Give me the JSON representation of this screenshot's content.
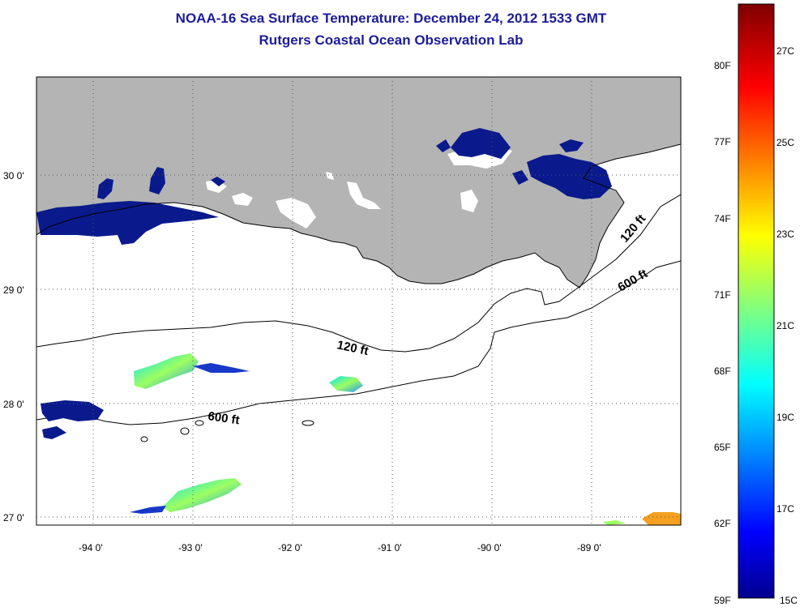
{
  "title": {
    "line1": "NOAA-16 Sea Surface Temperature:  December 24, 2012 1533 GMT",
    "line2": "Rutgers Coastal Ocean Observation Lab"
  },
  "map": {
    "lat_labels": [
      "30 0'",
      "29 0'",
      "28 0'",
      "27 0'"
    ],
    "lon_labels": [
      "-94 0'",
      "-93 0'",
      "-92 0'",
      "-91 0'",
      "-90 0'",
      "-89 0'"
    ],
    "contours": [
      "120 ft",
      "600 ft",
      "120 ft",
      "600 ft"
    ]
  },
  "colorbar": {
    "fahrenheit_labels": [
      "80F",
      "77F",
      "74F",
      "71F",
      "68F",
      "65F",
      "62F",
      "59F"
    ],
    "celsius_labels": [
      "27C",
      "25C",
      "23C",
      "21C",
      "19C",
      "17C",
      "15C"
    ]
  },
  "colors": {
    "title": "#1c1c9c",
    "land": "#b4b4b4",
    "cloud_mask": "#ffffff",
    "cold": "#0a1a8c"
  }
}
